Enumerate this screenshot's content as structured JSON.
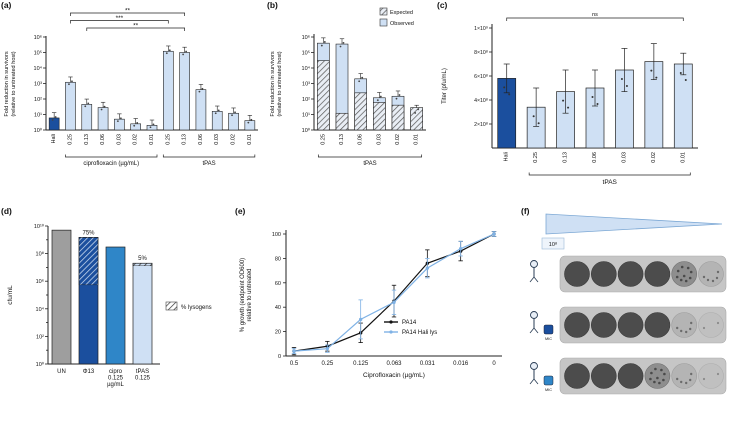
{
  "figure": {
    "panels": {
      "a": "(a)",
      "b": "(b)",
      "c": "(c)",
      "d": "(d)",
      "e": "(e)",
      "f": "(f)"
    }
  },
  "colors": {
    "dark_blue": "#1b4f9e",
    "mid_blue": "#2f86c8",
    "light_blue": "#cfe0f4",
    "gray_bar": "#9e9e9e",
    "axis": "#222222"
  },
  "chart_data": [
    {
      "panel": "a",
      "type": "bar",
      "scale": "log",
      "ylabel_line1": "Fold reduction in survivors",
      "ylabel_line2": "(relative to untreated host)",
      "ylim": [
        1,
        1000000
      ],
      "categories": [
        "Hali",
        "0.25",
        "0.13",
        "0.06",
        "0.03",
        "0.02",
        "0.01",
        "0.25",
        "0.13",
        "0.06",
        "0.03",
        "0.02",
        "0.01"
      ],
      "values": [
        6,
        1200,
        45,
        28,
        5,
        2.5,
        2,
        120000,
        100000,
        400,
        16,
        12,
        4
      ],
      "error_factor": 2.2,
      "group_labels": [
        {
          "label": "ciprofloxacin (µg/mL)",
          "from": 1,
          "to": 6
        },
        {
          "label": "tPAS",
          "from": 7,
          "to": 12
        }
      ],
      "significance": [
        {
          "from": 1,
          "to": 8,
          "label": "**"
        },
        {
          "from": 1,
          "to": 7,
          "label": "***"
        },
        {
          "from": 2,
          "to": 8,
          "label": "**"
        }
      ]
    },
    {
      "panel": "b",
      "type": "bar-overlay",
      "scale": "log",
      "ylabel_line1": "Fold reduction in survivors",
      "ylabel_line2": "(relative to untreated host)",
      "ylim": [
        1,
        1000000
      ],
      "categories": [
        "0.25",
        "0.13",
        "0.06",
        "0.03",
        "0.02",
        "0.01"
      ],
      "series": [
        {
          "name": "Expected",
          "style": "hatched",
          "values": [
            30000,
            12,
            250,
            60,
            40,
            28
          ]
        },
        {
          "name": "Observed",
          "style": "solid",
          "values": [
            400000,
            350000,
            2000,
            120,
            150,
            18
          ]
        }
      ],
      "error_factor": 2.2,
      "group_labels": [
        {
          "label": "tPAS",
          "from": 0,
          "to": 5
        }
      ]
    },
    {
      "panel": "c",
      "type": "bar",
      "scale": "linear",
      "ylabel": "Titer (pfu/mL)",
      "ylim": [
        0,
        1000000000
      ],
      "yticks": [
        {
          "v": 200000000,
          "label": "2×10⁸"
        },
        {
          "v": 400000000,
          "label": "4×10⁸"
        },
        {
          "v": 600000000,
          "label": "6×10⁸"
        },
        {
          "v": 800000000,
          "label": "8×10⁸"
        },
        {
          "v": 1000000000,
          "label": "1×10⁹"
        }
      ],
      "categories": [
        "Hali",
        "0.25",
        "0.13",
        "0.06",
        "0.03",
        "0.02",
        "0.01"
      ],
      "values": [
        580000000,
        340000000,
        470000000,
        500000000,
        650000000,
        720000000,
        700000000
      ],
      "errors": [
        120000000,
        160000000,
        180000000,
        150000000,
        180000000,
        150000000,
        90000000
      ],
      "group_labels": [
        {
          "label": "tPAS",
          "from": 1,
          "to": 6
        }
      ],
      "significance": [
        {
          "from": 0,
          "to": 6,
          "label": "ns"
        }
      ]
    },
    {
      "panel": "d",
      "type": "bar",
      "scale": "log",
      "ylabel": "cfu/mL",
      "ylim": [
        1,
        10000000000
      ],
      "categories": [
        "UN",
        "Φ13",
        "cipro\n0.125\nµg/mL",
        "tPAS\n0.125"
      ],
      "values": [
        5000000000,
        1500000000,
        300000000,
        20000000
      ],
      "lysogen_pct": [
        null,
        75,
        null,
        5
      ],
      "annotations": [
        "",
        "75%",
        "",
        "5%"
      ],
      "legend": "% lysogens"
    },
    {
      "panel": "e",
      "type": "line",
      "xlabel": "Ciprofloxacin (µg/mL)",
      "ylabel_line1": "% growth (endpoint OD600)",
      "ylabel_line2": "relative to untreated",
      "ylim": [
        0,
        100
      ],
      "categories": [
        "0.5",
        "0.25",
        "0.125",
        "0.063",
        "0.031",
        "0.016",
        "0"
      ],
      "series": [
        {
          "name": "PA14",
          "color": "#111111",
          "values": [
            4,
            8,
            19,
            45,
            76,
            86,
            100
          ],
          "errors": [
            3,
            4,
            8,
            13,
            11,
            8,
            2
          ]
        },
        {
          "name": "PA14 Hali lys",
          "color": "#7fb2e5",
          "values": [
            4,
            6,
            30,
            44,
            72,
            88,
            100
          ],
          "errors": [
            2,
            3,
            16,
            10,
            8,
            6,
            2
          ]
        }
      ]
    }
  ],
  "panel_f": {
    "dilution_label": "10⁸",
    "rows": [
      {
        "icon": "phage-icon",
        "drug": null,
        "drug_label": "",
        "spots": [
          "solid",
          "solid",
          "solid",
          "solid",
          "speckled",
          "sparse"
        ]
      },
      {
        "icon": "phage-icon",
        "drug": "dark",
        "drug_label": "MIC",
        "spots": [
          "solid",
          "solid",
          "solid",
          "solid",
          "sparse",
          "faint"
        ]
      },
      {
        "icon": "phage-icon",
        "drug": "light",
        "drug_label": "MIC",
        "spots": [
          "solid",
          "solid",
          "solid",
          "speckled",
          "sparse",
          "faint"
        ]
      }
    ]
  }
}
